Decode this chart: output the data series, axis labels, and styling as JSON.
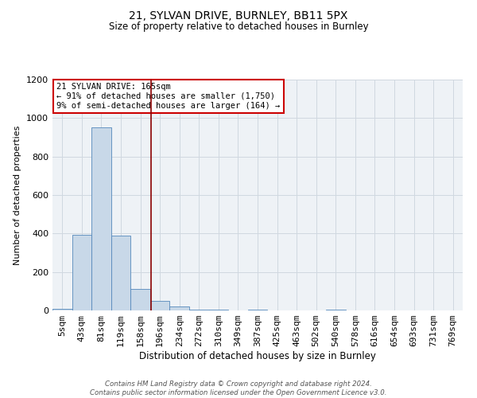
{
  "title_line1": "21, SYLVAN DRIVE, BURNLEY, BB11 5PX",
  "title_line2": "Size of property relative to detached houses in Burnley",
  "xlabel": "Distribution of detached houses by size in Burnley",
  "ylabel": "Number of detached properties",
  "bin_labels": [
    "5sqm",
    "43sqm",
    "81sqm",
    "119sqm",
    "158sqm",
    "196sqm",
    "234sqm",
    "272sqm",
    "310sqm",
    "349sqm",
    "387sqm",
    "425sqm",
    "463sqm",
    "502sqm",
    "540sqm",
    "578sqm",
    "616sqm",
    "654sqm",
    "693sqm",
    "731sqm",
    "769sqm"
  ],
  "bar_heights": [
    10,
    395,
    950,
    390,
    110,
    50,
    20,
    3,
    3,
    0,
    3,
    0,
    0,
    0,
    3,
    0,
    0,
    0,
    0,
    0,
    0
  ],
  "bar_color": "#c8d8e8",
  "bar_edge_color": "#5588bb",
  "grid_color": "#d0d8e0",
  "vline_x": 4.55,
  "vline_color": "#8b0000",
  "annotation_text_line1": "21 SYLVAN DRIVE: 165sqm",
  "annotation_line2": "← 91% of detached houses are smaller (1,750)",
  "annotation_line3": "9% of semi-detached houses are larger (164) →",
  "annotation_box_color": "#ffffff",
  "annotation_box_edge": "#cc0000",
  "ylim": [
    0,
    1200
  ],
  "yticks": [
    0,
    200,
    400,
    600,
    800,
    1000,
    1200
  ],
  "footnote_line1": "Contains HM Land Registry data © Crown copyright and database right 2024.",
  "footnote_line2": "Contains public sector information licensed under the Open Government Licence v3.0.",
  "background_color": "#eef2f6"
}
